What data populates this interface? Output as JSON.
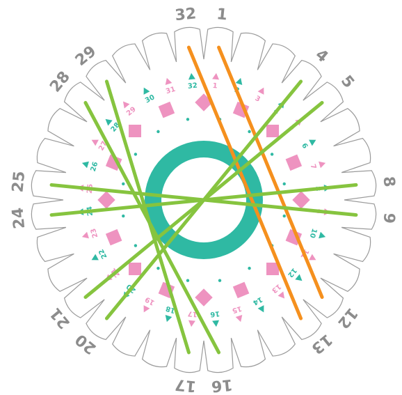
{
  "diagram": {
    "slot_count": 32,
    "outer_labels": [
      {
        "slot": 1,
        "text": "1"
      },
      {
        "slot": 4,
        "text": "4"
      },
      {
        "slot": 5,
        "text": "5"
      },
      {
        "slot": 8,
        "text": "8"
      },
      {
        "slot": 9,
        "text": "9"
      },
      {
        "slot": 12,
        "text": "12"
      },
      {
        "slot": 13,
        "text": "13"
      },
      {
        "slot": 16,
        "text": "16"
      },
      {
        "slot": 17,
        "text": "17"
      },
      {
        "slot": 20,
        "text": "20"
      },
      {
        "slot": 21,
        "text": "21"
      },
      {
        "slot": 24,
        "text": "24"
      },
      {
        "slot": 25,
        "text": "25"
      },
      {
        "slot": 28,
        "text": "28"
      },
      {
        "slot": 29,
        "text": "29"
      },
      {
        "slot": 32,
        "text": "32"
      }
    ],
    "inner_labels": [
      "1",
      "2",
      "3",
      "4",
      "5",
      "6",
      "7",
      "8",
      "9",
      "10",
      "11",
      "12",
      "13",
      "14",
      "15",
      "16",
      "17",
      "18",
      "19",
      "20",
      "21",
      "22",
      "23",
      "24",
      "25",
      "26",
      "27",
      "28",
      "29",
      "30",
      "31",
      "32"
    ],
    "threads": [
      {
        "from": 32,
        "to": 13,
        "color": "orange"
      },
      {
        "from": 1,
        "to": 12,
        "color": "orange"
      },
      {
        "from": 4,
        "to": 20,
        "color": "green"
      },
      {
        "from": 5,
        "to": 21,
        "color": "green"
      },
      {
        "from": 8,
        "to": 24,
        "color": "green"
      },
      {
        "from": 9,
        "to": 25,
        "color": "green"
      },
      {
        "from": 28,
        "to": 16,
        "color": "green"
      },
      {
        "from": 29,
        "to": 17,
        "color": "green"
      }
    ],
    "colors": {
      "petal_stroke": "#9a9a9a",
      "outer_number": "#8c8c8c",
      "teal": "#2fb9a3",
      "pink": "#ee93c0",
      "green": "#86c43f",
      "orange": "#f5901e"
    }
  }
}
